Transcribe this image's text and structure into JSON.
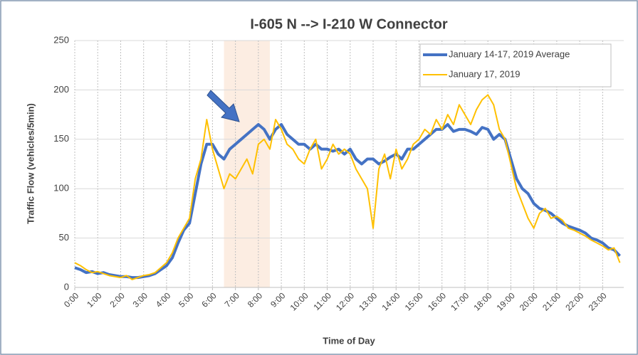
{
  "chart_data": {
    "type": "line",
    "title": "I-605 N --> I-210 W Connector",
    "x_label": "Time of Day",
    "y_label": "Traffic Flow (vehicles/5min)",
    "x": [
      0,
      0.25,
      0.5,
      0.75,
      1,
      1.25,
      1.5,
      1.75,
      2,
      2.25,
      2.5,
      2.75,
      3,
      3.25,
      3.5,
      3.75,
      4,
      4.25,
      4.5,
      4.75,
      5,
      5.25,
      5.5,
      5.75,
      6,
      6.25,
      6.5,
      6.75,
      7,
      7.25,
      7.5,
      7.75,
      8,
      8.25,
      8.5,
      8.75,
      9,
      9.25,
      9.5,
      9.75,
      10,
      10.25,
      10.5,
      10.75,
      11,
      11.25,
      11.5,
      11.75,
      12,
      12.25,
      12.5,
      12.75,
      13,
      13.25,
      13.5,
      13.75,
      14,
      14.25,
      14.5,
      14.75,
      15,
      15.25,
      15.5,
      15.75,
      16,
      16.25,
      16.5,
      16.75,
      17,
      17.25,
      17.5,
      17.75,
      18,
      18.25,
      18.5,
      18.75,
      19,
      19.25,
      19.5,
      19.75,
      20,
      20.25,
      20.5,
      20.75,
      21,
      21.25,
      21.5,
      21.75,
      22,
      22.25,
      22.5,
      22.75,
      23,
      23.25,
      23.5,
      23.75
    ],
    "series": [
      {
        "name": "January 14-17, 2019 Average",
        "color": "#4472c4",
        "width": 4,
        "values": [
          20,
          18,
          15,
          16,
          14,
          15,
          13,
          12,
          11,
          11,
          10,
          10,
          11,
          12,
          14,
          18,
          22,
          30,
          45,
          58,
          65,
          95,
          125,
          145,
          145,
          135,
          130,
          140,
          145,
          150,
          155,
          160,
          165,
          160,
          150,
          160,
          165,
          155,
          150,
          145,
          145,
          140,
          145,
          140,
          140,
          138,
          140,
          135,
          140,
          130,
          125,
          130,
          130,
          125,
          128,
          132,
          135,
          130,
          140,
          140,
          145,
          150,
          155,
          160,
          160,
          165,
          158,
          160,
          160,
          158,
          155,
          162,
          160,
          150,
          155,
          150,
          130,
          110,
          100,
          95,
          85,
          80,
          78,
          75,
          70,
          65,
          62,
          60,
          58,
          55,
          50,
          48,
          45,
          40,
          38,
          32
        ]
      },
      {
        "name": "January 17, 2019",
        "color": "#ffc000",
        "width": 2,
        "values": [
          25,
          22,
          18,
          15,
          16,
          14,
          12,
          11,
          10,
          12,
          8,
          10,
          12,
          13,
          15,
          20,
          25,
          35,
          50,
          60,
          70,
          110,
          130,
          170,
          140,
          120,
          100,
          115,
          110,
          120,
          130,
          115,
          145,
          150,
          140,
          170,
          160,
          145,
          140,
          130,
          125,
          140,
          150,
          120,
          130,
          145,
          135,
          140,
          135,
          120,
          110,
          100,
          60,
          120,
          135,
          110,
          140,
          120,
          130,
          145,
          150,
          160,
          155,
          170,
          160,
          175,
          165,
          185,
          175,
          165,
          180,
          190,
          195,
          185,
          160,
          150,
          125,
          100,
          85,
          70,
          60,
          75,
          80,
          70,
          72,
          68,
          60,
          58,
          55,
          52,
          48,
          45,
          42,
          38,
          40,
          25
        ]
      }
    ],
    "highlight_range": [
      6.5,
      8.5
    ],
    "xlim": [
      0,
      23.92
    ],
    "xticks": [
      {
        "value": 0,
        "label": "0:00"
      },
      {
        "value": 1,
        "label": "1:00"
      },
      {
        "value": 2,
        "label": "2:00"
      },
      {
        "value": 3,
        "label": "3:00"
      },
      {
        "value": 4,
        "label": "4:00"
      },
      {
        "value": 5,
        "label": "5:00"
      },
      {
        "value": 6,
        "label": "6:00"
      },
      {
        "value": 7,
        "label": "7:00"
      },
      {
        "value": 8,
        "label": "8:00"
      },
      {
        "value": 9,
        "label": "9:00"
      },
      {
        "value": 10,
        "label": "10:00"
      },
      {
        "value": 11,
        "label": "11:00"
      },
      {
        "value": 12,
        "label": "12:00"
      },
      {
        "value": 13,
        "label": "13:00"
      },
      {
        "value": 14,
        "label": "14:00"
      },
      {
        "value": 15,
        "label": "15:00"
      },
      {
        "value": 16,
        "label": "16:00"
      },
      {
        "value": 17,
        "label": "17:00"
      },
      {
        "value": 18,
        "label": "18:00"
      },
      {
        "value": 19,
        "label": "19:00"
      },
      {
        "value": 20,
        "label": "20:00"
      },
      {
        "value": 21,
        "label": "21:00"
      },
      {
        "value": 22,
        "label": "22:00"
      },
      {
        "value": 23,
        "label": "23:00"
      }
    ],
    "ylim": [
      0,
      250
    ],
    "yticks": [
      0,
      50,
      100,
      150,
      200,
      250
    ],
    "grid": true,
    "legend": "upper right"
  }
}
